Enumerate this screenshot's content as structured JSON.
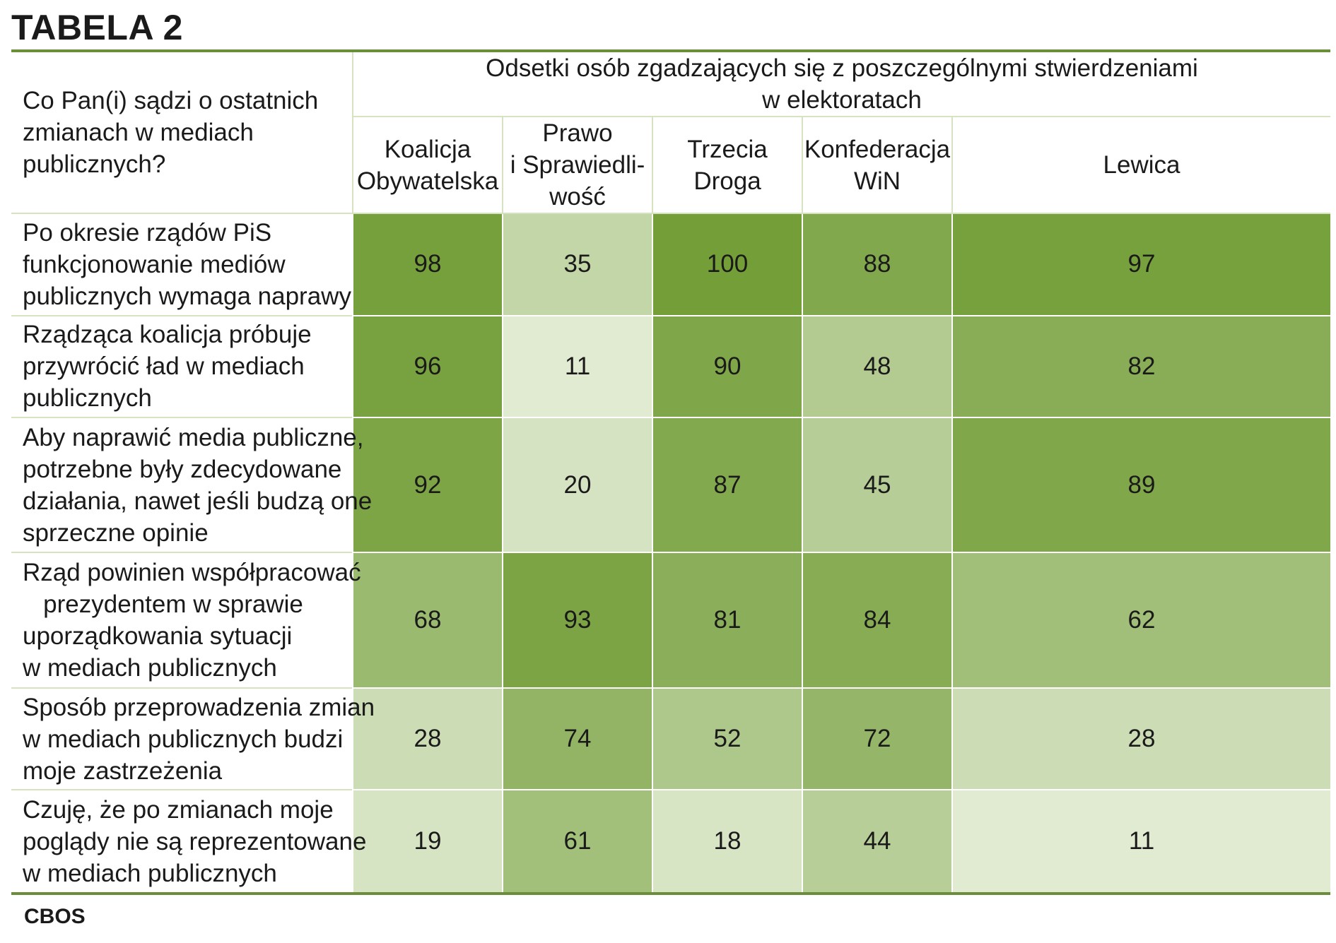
{
  "title": "TABELA 2",
  "source": "CBOS",
  "chart_data": {
    "type": "table",
    "row_header": [
      "Co Pan(i) sądzi o ostatnich",
      "zmianach w mediach",
      "publicznych?"
    ],
    "super_header": [
      "Odsetki osób zgadzających się z poszczególnymi stwierdzeniami",
      "w elektoratach"
    ],
    "columns": [
      {
        "name_lines": [
          "Koalicja",
          "Obywatelska"
        ]
      },
      {
        "name_lines": [
          "Prawo",
          "i Sprawiedli-",
          "wość"
        ]
      },
      {
        "name_lines": [
          "Trzecia",
          "Droga"
        ]
      },
      {
        "name_lines": [
          "Konfederacja",
          "WiN"
        ]
      },
      {
        "name_lines": [
          "Lewica"
        ]
      }
    ],
    "rows": [
      {
        "label_lines": [
          "Po okresie rządów PiS",
          "funkcjonowanie mediów",
          "publicznych wymaga naprawy"
        ],
        "values": [
          98,
          35,
          100,
          88,
          97
        ]
      },
      {
        "label_lines": [
          "Rządząca koalicja próbuje",
          "przywrócić ład w mediach",
          "publicznych"
        ],
        "values": [
          96,
          11,
          90,
          48,
          82
        ]
      },
      {
        "label_lines": [
          "Aby naprawić media publiczne,",
          "potrzebne były zdecydowane",
          "działania, nawet jeśli budzą one",
          "sprzeczne opinie"
        ],
        "values": [
          92,
          20,
          87,
          45,
          89
        ]
      },
      {
        "label_lines": [
          "Rząd powinien współpracować",
          "   prezydentem w sprawie",
          "uporządkowania sytuacji",
          "w mediach publicznych"
        ],
        "values": [
          68,
          93,
          81,
          84,
          62
        ]
      },
      {
        "label_lines": [
          "Sposób przeprowadzenia zmian",
          "w mediach publicznych budzi",
          "moje zastrzeżenia"
        ],
        "values": [
          28,
          74,
          52,
          72,
          28
        ]
      },
      {
        "label_lines": [
          "Czuję, że po zmianach moje",
          "poglądy nie są reprezentowane",
          "w mediach publicznych"
        ],
        "values": [
          19,
          61,
          18,
          44,
          11
        ]
      }
    ],
    "value_range": [
      0,
      100
    ],
    "color_low": "#eef4e4",
    "color_high": "#739e38"
  }
}
